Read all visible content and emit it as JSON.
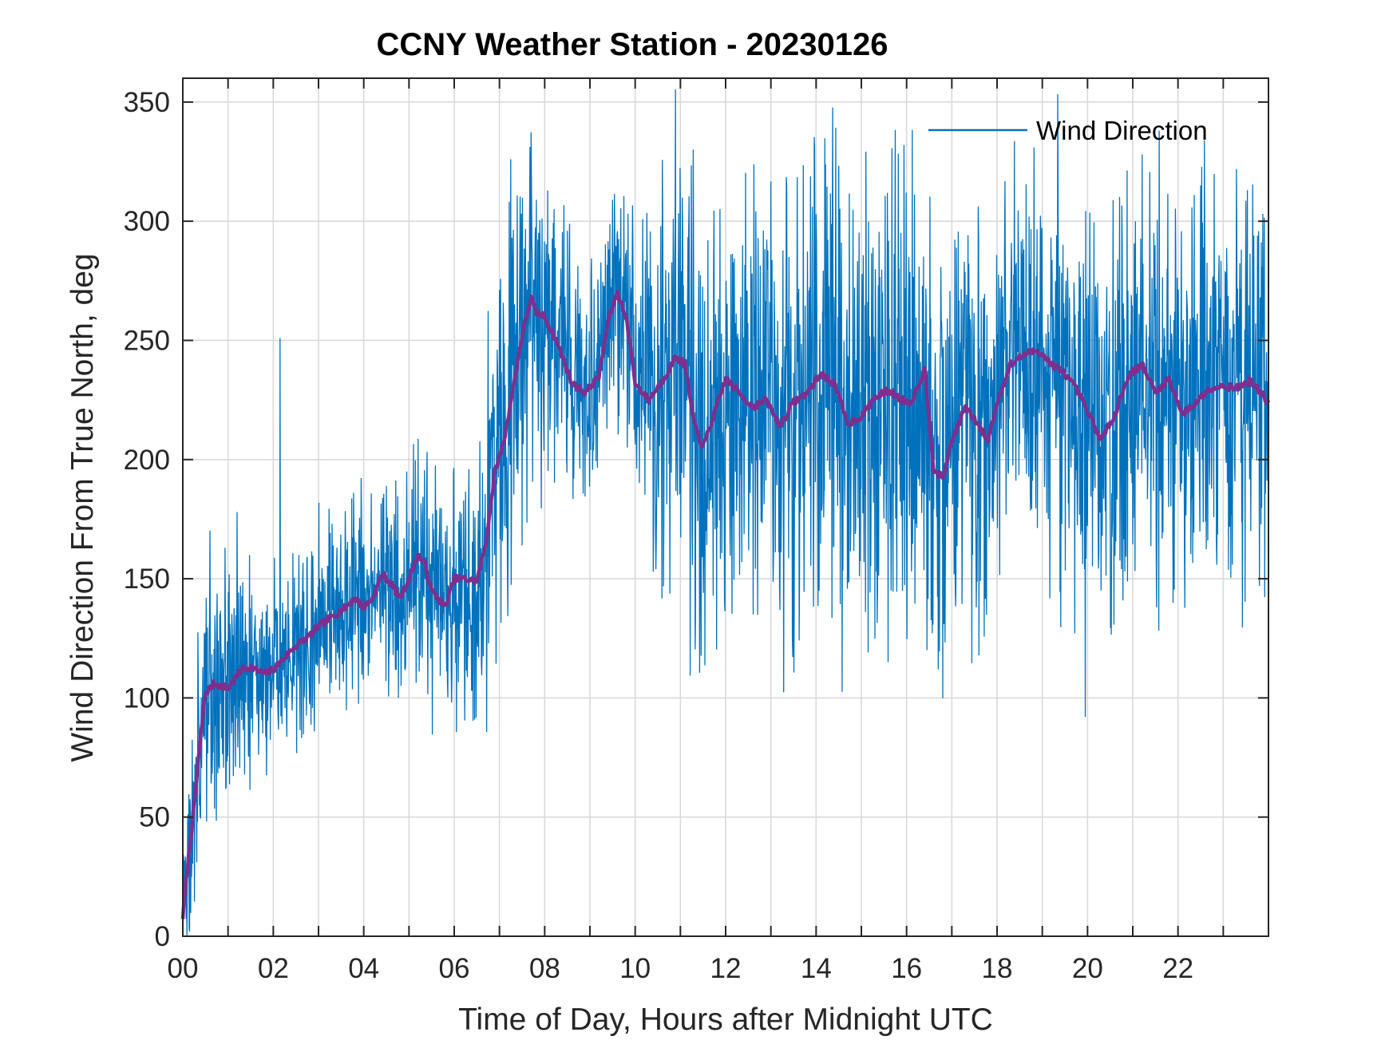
{
  "chart_data": {
    "type": "line",
    "title": "CCNY Weather Station - 20230126",
    "xlabel": "Time of Day, Hours after Midnight UTC",
    "ylabel": "Wind Direction From True North, deg",
    "xlim": [
      0,
      24
    ],
    "ylim": [
      0,
      360
    ],
    "x_ticks": [
      0,
      2,
      4,
      6,
      8,
      10,
      12,
      14,
      16,
      18,
      20,
      22
    ],
    "x_tick_labels": [
      "00",
      "02",
      "04",
      "06",
      "08",
      "10",
      "12",
      "14",
      "16",
      "18",
      "20",
      "22"
    ],
    "y_ticks": [
      0,
      50,
      100,
      150,
      200,
      250,
      300,
      350
    ],
    "y_tick_labels": [
      "0",
      "50",
      "100",
      "150",
      "200",
      "250",
      "300",
      "350"
    ],
    "grid": true,
    "legend": {
      "position": "top-right",
      "entries": [
        "Wind Direction"
      ]
    },
    "colors": {
      "raw": "#0072BD",
      "smoothed": "#7E2F8E",
      "grid": "#d9d9d9",
      "axes": "#262626"
    },
    "series": [
      {
        "name": "Wind Direction",
        "color": "#0072BD",
        "noise_amplitude": [
          [
            0,
            20
          ],
          [
            0.5,
            25
          ],
          [
            2,
            20
          ],
          [
            4,
            20
          ],
          [
            6,
            25
          ],
          [
            7,
            40
          ],
          [
            8,
            30
          ],
          [
            9,
            25
          ],
          [
            10,
            30
          ],
          [
            11,
            45
          ],
          [
            16,
            50
          ],
          [
            18,
            35
          ],
          [
            20,
            45
          ],
          [
            22,
            40
          ],
          [
            24,
            40
          ]
        ],
        "spikes": [
          [
            0.15,
            2
          ],
          [
            2.15,
            251
          ],
          [
            1.2,
            178
          ],
          [
            7.25,
            326
          ],
          [
            8.5,
            296
          ],
          [
            19.95,
            92
          ],
          [
            16.7,
            112
          ],
          [
            23.3,
            295
          ],
          [
            23.8,
            147
          ],
          [
            13.4,
            285
          ]
        ]
      },
      {
        "name": "",
        "color": "#7E2F8E",
        "x": [
          0.0,
          0.1,
          0.25,
          0.4,
          0.5,
          0.7,
          1.0,
          1.3,
          1.5,
          1.8,
          2.0,
          2.3,
          2.5,
          2.8,
          3.0,
          3.3,
          3.6,
          3.8,
          4.0,
          4.2,
          4.4,
          4.6,
          4.8,
          5.0,
          5.2,
          5.35,
          5.5,
          5.8,
          6.0,
          6.2,
          6.5,
          6.7,
          6.9,
          7.1,
          7.3,
          7.5,
          7.7,
          7.8,
          8.0,
          8.3,
          8.6,
          8.9,
          9.2,
          9.4,
          9.6,
          9.8,
          10.0,
          10.3,
          10.6,
          10.9,
          11.1,
          11.3,
          11.5,
          11.8,
          12.0,
          12.3,
          12.6,
          12.9,
          13.2,
          13.5,
          13.8,
          14.1,
          14.4,
          14.7,
          15.0,
          15.3,
          15.6,
          15.9,
          16.1,
          16.4,
          16.6,
          16.8,
          17.0,
          17.3,
          17.6,
          17.8,
          18.0,
          18.3,
          18.6,
          18.9,
          19.2,
          19.5,
          19.8,
          20.0,
          20.3,
          20.6,
          20.9,
          21.2,
          21.5,
          21.8,
          22.1,
          22.4,
          22.7,
          23.0,
          23.3,
          23.6,
          24.0
        ],
        "y": [
          8,
          28,
          55,
          85,
          102,
          106,
          104,
          112,
          113,
          110,
          112,
          118,
          122,
          126,
          130,
          134,
          138,
          142,
          138,
          142,
          152,
          148,
          142,
          150,
          160,
          156,
          145,
          138,
          150,
          150,
          149,
          165,
          195,
          208,
          230,
          252,
          268,
          262,
          260,
          248,
          232,
          228,
          235,
          258,
          270,
          260,
          232,
          225,
          233,
          243,
          240,
          215,
          205,
          222,
          234,
          228,
          222,
          225,
          214,
          224,
          228,
          236,
          232,
          215,
          218,
          226,
          229,
          225,
          224,
          238,
          196,
          192,
          208,
          222,
          214,
          208,
          224,
          240,
          244,
          246,
          240,
          236,
          228,
          220,
          208,
          219,
          235,
          240,
          228,
          234,
          219,
          224,
          230,
          231,
          230,
          233,
          224
        ]
      }
    ]
  }
}
